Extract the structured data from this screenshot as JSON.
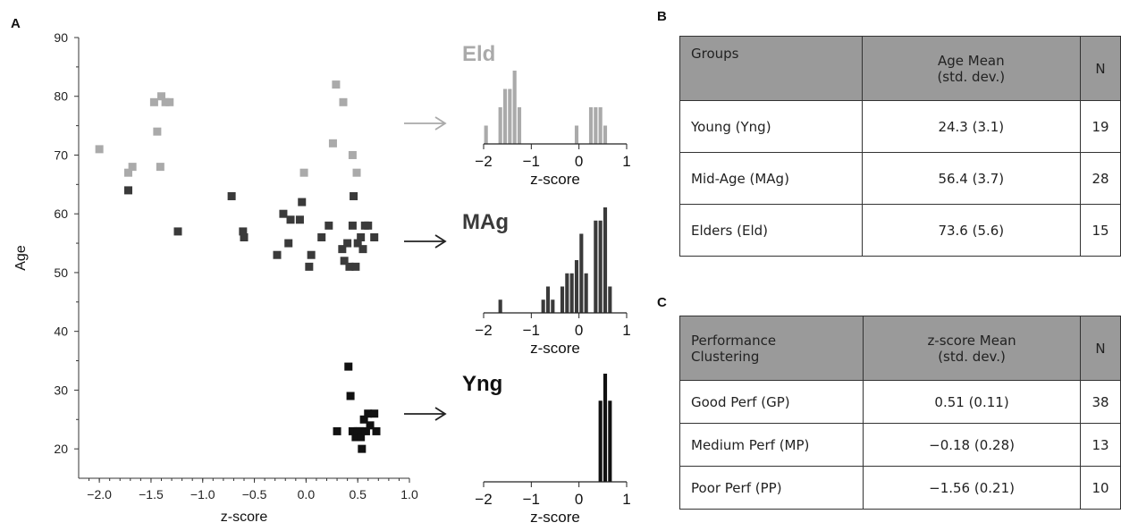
{
  "panel_labels": {
    "a": "A",
    "b": "B",
    "c": "C"
  },
  "colors": {
    "eld": "#aaaaaa",
    "mag": "#3a3a3a",
    "yng": "#111111"
  },
  "chart_data": [
    {
      "type": "scatter",
      "xlabel": "z-score",
      "ylabel": "Age",
      "xlim": [
        -2.2,
        1.0
      ],
      "ylim": [
        15,
        90
      ],
      "x_ticks": [
        "−2.0",
        "−1.5",
        "−1.0",
        "−0.5",
        "0.0",
        "0.5",
        "1.0"
      ],
      "y_ticks": [
        "20",
        "30",
        "40",
        "50",
        "60",
        "70",
        "80",
        "90"
      ],
      "grid": false,
      "series": [
        {
          "name": "Eld",
          "color": "#aaaaaa",
          "points": [
            [
              -2.0,
              71
            ],
            [
              -1.72,
              67
            ],
            [
              -1.68,
              68
            ],
            [
              -1.47,
              79
            ],
            [
              -1.44,
              74
            ],
            [
              -1.41,
              68
            ],
            [
              -1.4,
              80
            ],
            [
              -1.36,
              79
            ],
            [
              -1.32,
              79
            ],
            [
              -0.02,
              67
            ],
            [
              0.26,
              72
            ],
            [
              0.29,
              82
            ],
            [
              0.36,
              79
            ],
            [
              0.45,
              70
            ],
            [
              0.49,
              67
            ]
          ]
        },
        {
          "name": "MAg",
          "color": "#3a3a3a",
          "points": [
            [
              -1.72,
              64
            ],
            [
              -1.24,
              57
            ],
            [
              -0.72,
              63
            ],
            [
              -0.61,
              57
            ],
            [
              -0.6,
              56
            ],
            [
              -0.28,
              53
            ],
            [
              -0.22,
              60
            ],
            [
              -0.17,
              55
            ],
            [
              -0.15,
              59
            ],
            [
              -0.06,
              59
            ],
            [
              -0.04,
              62
            ],
            [
              0.03,
              51
            ],
            [
              0.05,
              53
            ],
            [
              0.15,
              56
            ],
            [
              0.22,
              58
            ],
            [
              0.35,
              54
            ],
            [
              0.37,
              52
            ],
            [
              0.4,
              55
            ],
            [
              0.42,
              51
            ],
            [
              0.45,
              58
            ],
            [
              0.46,
              63
            ],
            [
              0.48,
              51
            ],
            [
              0.5,
              55
            ],
            [
              0.53,
              56
            ],
            [
              0.55,
              54
            ],
            [
              0.57,
              58
            ],
            [
              0.6,
              58
            ],
            [
              0.66,
              56
            ]
          ]
        },
        {
          "name": "Yng",
          "color": "#111111",
          "points": [
            [
              0.3,
              23
            ],
            [
              0.41,
              34
            ],
            [
              0.43,
              29
            ],
            [
              0.45,
              23
            ],
            [
              0.48,
              22
            ],
            [
              0.5,
              23
            ],
            [
              0.52,
              23
            ],
            [
              0.53,
              22
            ],
            [
              0.54,
              20
            ],
            [
              0.56,
              25
            ],
            [
              0.58,
              23
            ],
            [
              0.6,
              26
            ],
            [
              0.62,
              24
            ],
            [
              0.66,
              26
            ],
            [
              0.68,
              23
            ]
          ]
        }
      ]
    },
    {
      "type": "bar",
      "title": "Eld",
      "xlabel": "z-score",
      "xlim": [
        -2,
        1
      ],
      "x_ticks": [
        "−2",
        "−1",
        "0",
        "1"
      ],
      "bin_width": 0.1,
      "bins": [
        [
          -1.95,
          1
        ],
        [
          -1.65,
          2
        ],
        [
          -1.55,
          3
        ],
        [
          -1.45,
          3
        ],
        [
          -1.35,
          4
        ],
        [
          -1.25,
          2
        ],
        [
          -0.05,
          1
        ],
        [
          0.25,
          2
        ],
        [
          0.35,
          2
        ],
        [
          0.45,
          2
        ],
        [
          0.55,
          1
        ]
      ]
    },
    {
      "type": "bar",
      "title": "MAg",
      "xlabel": "z-score",
      "xlim": [
        -2,
        1
      ],
      "x_ticks": [
        "−2",
        "−1",
        "0",
        "1"
      ],
      "bin_width": 0.1,
      "bins": [
        [
          -1.65,
          1
        ],
        [
          -0.75,
          1
        ],
        [
          -0.65,
          2
        ],
        [
          -0.55,
          1
        ],
        [
          -0.35,
          2
        ],
        [
          -0.25,
          3
        ],
        [
          -0.15,
          3
        ],
        [
          -0.05,
          4
        ],
        [
          0.05,
          6
        ],
        [
          0.15,
          3
        ],
        [
          0.35,
          7
        ],
        [
          0.45,
          7
        ],
        [
          0.55,
          8
        ],
        [
          0.65,
          2
        ]
      ]
    },
    {
      "type": "bar",
      "title": "Yng",
      "xlabel": "z-score",
      "xlim": [
        -2,
        1
      ],
      "x_ticks": [
        "−2",
        "−1",
        "0",
        "1"
      ],
      "bin_width": 0.1,
      "bins": [
        [
          0.45,
          3
        ],
        [
          0.55,
          4
        ],
        [
          0.65,
          3
        ]
      ]
    }
  ],
  "table_b": {
    "headers": [
      "Groups",
      "Age Mean\n(std. dev.)",
      "N"
    ],
    "rows": [
      [
        "Young (Yng)",
        "24.3 (3.1)",
        "19"
      ],
      [
        "Mid-Age (MAg)",
        "56.4 (3.7)",
        "28"
      ],
      [
        "Elders (Eld)",
        "73.6 (5.6)",
        "15"
      ]
    ]
  },
  "table_c": {
    "headers": [
      "Performance\nClustering",
      "z-score Mean\n(std. dev.)",
      "N"
    ],
    "rows": [
      [
        "Good Perf (GP)",
        "0.51 (0.11)",
        "38"
      ],
      [
        "Medium Perf (MP)",
        "−0.18 (0.28)",
        "13"
      ],
      [
        "Poor Perf (PP)",
        "−1.56 (0.21)",
        "10"
      ]
    ]
  }
}
